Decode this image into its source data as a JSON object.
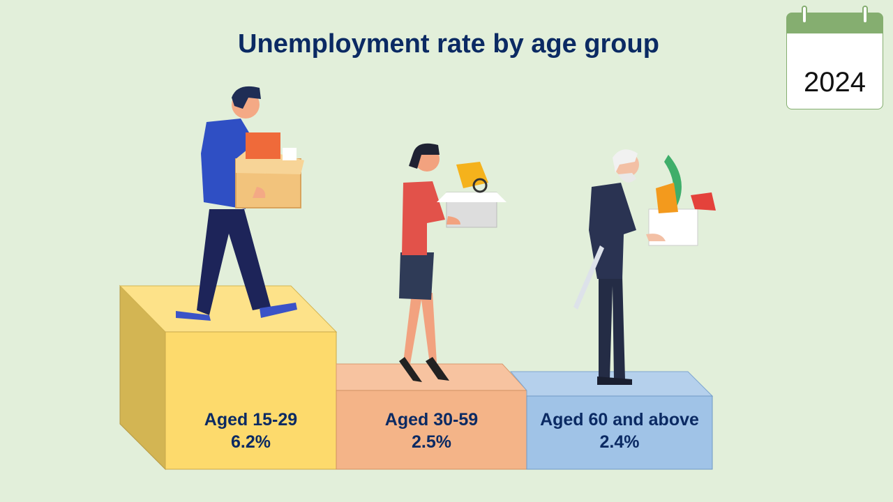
{
  "chart_data": {
    "type": "bar",
    "title": "Unemployment rate by age group",
    "categories": [
      "Aged 15-29",
      "Aged 30-59",
      "Aged 60 and above"
    ],
    "values": [
      6.2,
      2.5,
      2.4
    ],
    "value_labels": [
      "6.2%",
      "2.5%",
      "2.4%"
    ],
    "unit": "%"
  },
  "calendar": {
    "year": "2024",
    "icon": "calendar-icon"
  },
  "colors": {
    "step1_front": "#fdda6c",
    "step1_top": "#fde289",
    "step1_side": "#d3b553",
    "step2_front": "#f4b488",
    "step2_top": "#f7c3a0",
    "step3_front": "#a0c3e7",
    "step3_top": "#b5d0ec",
    "title": "#0b2a63",
    "calendar": "#85ae70"
  },
  "illustrations": [
    "young-man-carrying-box",
    "woman-carrying-box",
    "elderly-man-with-cane-carrying-box"
  ]
}
